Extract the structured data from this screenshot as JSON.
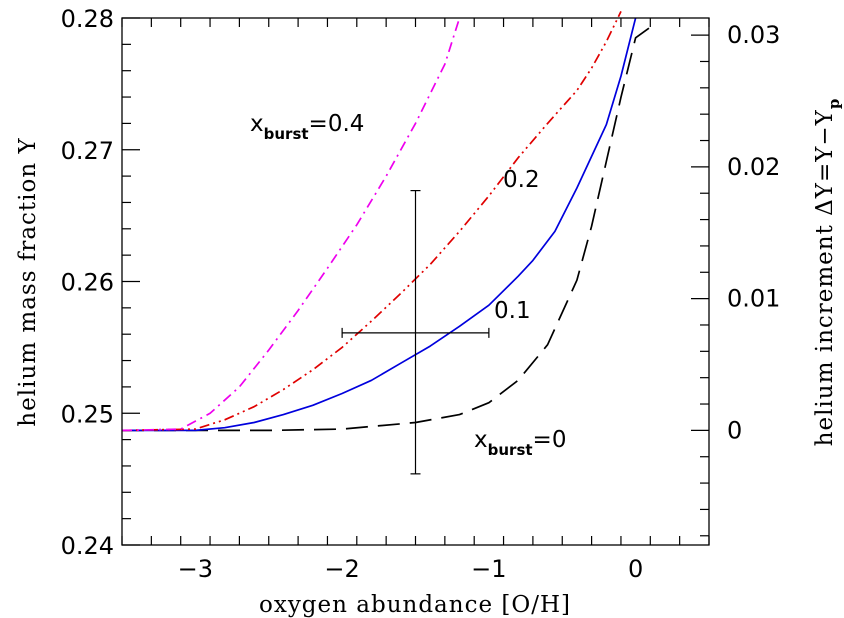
{
  "chart_data": {
    "type": "line",
    "xlabel": "oxygen abundance [O/H]",
    "ylabel": "helium mass fraction Y",
    "ylabel_right": {
      "main": "helium increment ΔY=Y−Y",
      "sub": "p"
    },
    "xlim": [
      -3.5,
      0.5
    ],
    "ylim": [
      0.24,
      0.28
    ],
    "y2lim": [
      -0.0087,
      0.0313
    ],
    "x_ticks": [
      {
        "value": -3,
        "label": "−3"
      },
      {
        "value": -2,
        "label": "−2"
      },
      {
        "value": -1,
        "label": "−1"
      },
      {
        "value": 0,
        "label": "0"
      }
    ],
    "y_ticks": [
      {
        "value": 0.24,
        "label": "0.24"
      },
      {
        "value": 0.25,
        "label": "0.25"
      },
      {
        "value": 0.26,
        "label": "0.26"
      },
      {
        "value": 0.27,
        "label": "0.27"
      },
      {
        "value": 0.28,
        "label": "0.28"
      }
    ],
    "y2_ticks": [
      {
        "value": 0,
        "label": "0"
      },
      {
        "value": 0.01,
        "label": "0.01"
      },
      {
        "value": 0.02,
        "label": "0.02"
      },
      {
        "value": 0.03,
        "label": "0.03"
      }
    ],
    "series": [
      {
        "color": "#000000",
        "dash": "long-dash",
        "x": [
          -3.5,
          -3,
          -2.5,
          -2,
          -1.5,
          -1.2,
          -1.0,
          -0.8,
          -0.6,
          -0.4,
          -0.3,
          -0.2,
          -0.1,
          0.0,
          0.1
        ],
        "y": [
          0.2487,
          0.2487,
          0.2487,
          0.2488,
          0.2493,
          0.2499,
          0.2508,
          0.2525,
          0.2552,
          0.2601,
          0.2642,
          0.2691,
          0.274,
          0.2785,
          0.2793
        ]
      },
      {
        "color": "#0000dd",
        "dash": "solid",
        "x": [
          -3.5,
          -3.0,
          -2.8,
          -2.6,
          -2.4,
          -2.2,
          -2.0,
          -1.8,
          -1.6,
          -1.4,
          -1.2,
          -1.0,
          -0.8,
          -0.7,
          -0.55,
          -0.4,
          -0.2,
          -0.1,
          0.0
        ],
        "y": [
          0.2487,
          0.2487,
          0.2489,
          0.2493,
          0.2499,
          0.2506,
          0.2515,
          0.2525,
          0.2538,
          0.2551,
          0.2566,
          0.2582,
          0.2604,
          0.2616,
          0.2638,
          0.2671,
          0.2719,
          0.2756,
          0.28
        ]
      },
      {
        "color": "#e00000",
        "dash": "dash-dot-dot",
        "x": [
          -3.5,
          -3.0,
          -2.8,
          -2.6,
          -2.4,
          -2.2,
          -2.0,
          -1.8,
          -1.6,
          -1.4,
          -1.2,
          -1.0,
          -0.8,
          -0.6,
          -0.4,
          -0.3,
          -0.2,
          -0.1
        ],
        "y": [
          0.2487,
          0.2488,
          0.2495,
          0.2505,
          0.2518,
          0.2533,
          0.255,
          0.257,
          0.2591,
          0.2613,
          0.2638,
          0.2665,
          0.2694,
          0.272,
          0.2745,
          0.2762,
          0.2782,
          0.2805
        ]
      },
      {
        "color": "#ee00ee",
        "dash": "dash-dot",
        "x": [
          -3.5,
          -3.1,
          -2.9,
          -2.7,
          -2.5,
          -2.3,
          -2.1,
          -1.9,
          -1.7,
          -1.5,
          -1.3,
          -1.2
        ],
        "y": [
          0.2487,
          0.2488,
          0.25,
          0.252,
          0.2548,
          0.2578,
          0.261,
          0.2643,
          0.268,
          0.272,
          0.2765,
          0.28
        ]
      }
    ],
    "error_bar": {
      "x": -1.5,
      "y": 0.2561,
      "x_range": [
        -2.0,
        -1.0
      ],
      "y_range": [
        0.2454,
        0.2669
      ]
    },
    "annotations": [
      {
        "text": "x",
        "sub": "burst",
        "suffix": "=0.4"
      },
      {
        "text": "0.2"
      },
      {
        "text": "0.1"
      },
      {
        "text": "x",
        "sub": "burst",
        "suffix": "=0"
      }
    ]
  }
}
